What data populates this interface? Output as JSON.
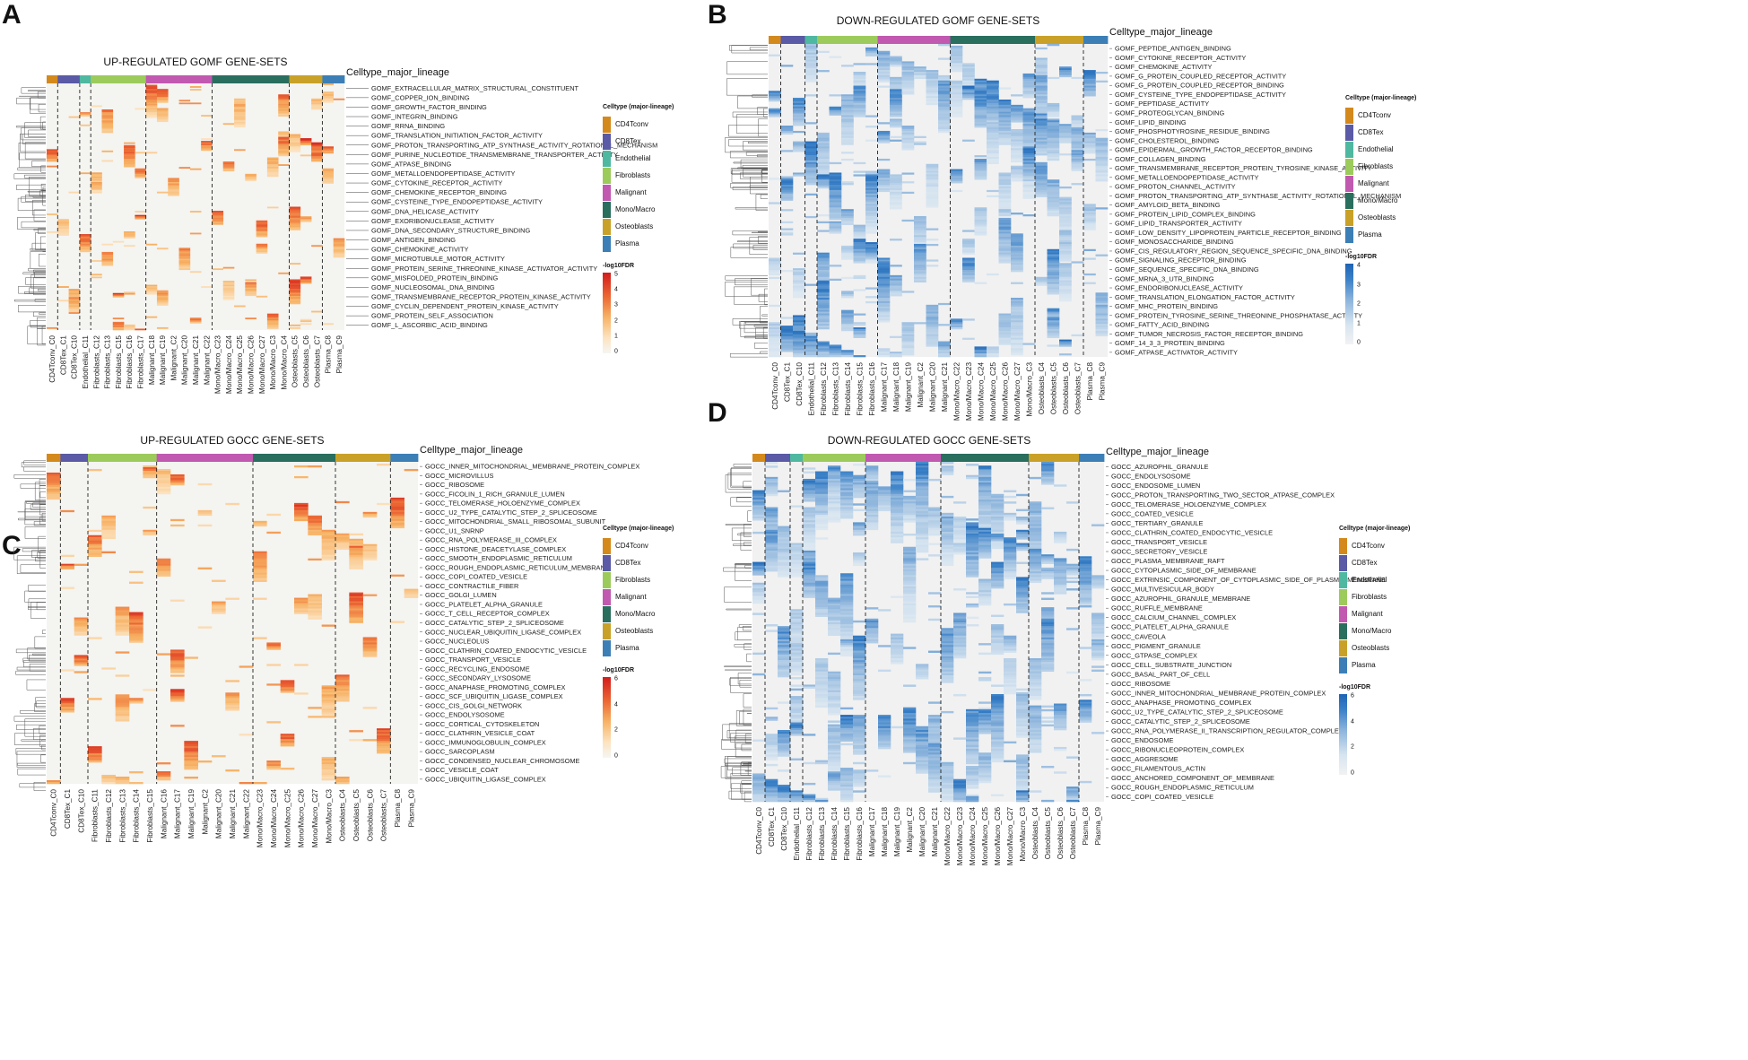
{
  "chart_data": [
    {
      "type": "heatmap",
      "panel": "A",
      "title": "UP-REGULATED GOMF GENE-SETS",
      "strip_label": "Celltype_major_lineage",
      "legend_title": "Celltype (major-lineage)",
      "colorbar_title": "-log10FDR",
      "colorbar_ticks": [
        "0",
        "1",
        "2",
        "3",
        "4",
        "5"
      ],
      "colorbar_range": [
        0,
        5
      ],
      "colorscale": "red",
      "columns": [
        "CD4Tconv_C0",
        "CD8Tex_C1",
        "CD8Tex_C10",
        "Endothelial_C11",
        "Fibroblasts_C12",
        "Fibroblasts_C13",
        "Fibroblasts_C15",
        "Fibroblasts_C16",
        "Fibroblasts_C17",
        "Malignant_C18",
        "Malignant_C19",
        "Malignant_C2",
        "Malignant_C20",
        "Malignant_C21",
        "Malignant_C22",
        "Mono/Macro_C23",
        "Mono/Macro_C24",
        "Mono/Macro_C25",
        "Mono/Macro_C26",
        "Mono/Macro_C27",
        "Mono/Macro_C3",
        "Mono/Macro_C4",
        "Osteoblasts_C5",
        "Osteoblasts_C6",
        "Osteoblasts_C7",
        "Plasma_C8",
        "Plasma_C9"
      ],
      "column_groups": [
        "CD4Tconv",
        "CD8Tex",
        "CD8Tex",
        "Endothelial",
        "Fibroblasts",
        "Fibroblasts",
        "Fibroblasts",
        "Fibroblasts",
        "Fibroblasts",
        "Malignant",
        "Malignant",
        "Malignant",
        "Malignant",
        "Malignant",
        "Malignant",
        "Mono/Macro",
        "Mono/Macro",
        "Mono/Macro",
        "Mono/Macro",
        "Mono/Macro",
        "Mono/Macro",
        "Mono/Macro",
        "Osteoblasts",
        "Osteoblasts",
        "Osteoblasts",
        "Plasma",
        "Plasma"
      ],
      "rows": [
        "GOMF_EXTRACELLULAR_MATRIX_STRUCTURAL_CONSTITUENT",
        "GOMF_COPPER_ION_BINDING",
        "GOMF_GROWTH_FACTOR_BINDING",
        "GOMF_INTEGRIN_BINDING",
        "GOMF_RRNA_BINDING",
        "GOMF_TRANSLATION_INITIATION_FACTOR_ACTIVITY",
        "GOMF_PROTON_TRANSPORTING_ATP_SYNTHASE_ACTIVITY_ROTATIONAL_MECHANISM",
        "GOMF_PURINE_NUCLEOTIDE_TRANSMEMBRANE_TRANSPORTER_ACTIVITY",
        "GOMF_ATPASE_BINDING",
        "GOMF_METALLOENDOPEPTIDASE_ACTIVITY",
        "GOMF_CYTOKINE_RECEPTOR_ACTIVITY",
        "GOMF_CHEMOKINE_RECEPTOR_BINDING",
        "GOMF_CYSTEINE_TYPE_ENDOPEPTIDASE_ACTIVITY",
        "GOMF_DNA_HELICASE_ACTIVITY",
        "GOMF_EXORIBONUCLEASE_ACTIVITY",
        "GOMF_DNA_SECONDARY_STRUCTURE_BINDING",
        "GOMF_ANTIGEN_BINDING",
        "GOMF_CHEMOKINE_ACTIVITY",
        "GOMF_MICROTUBULE_MOTOR_ACTIVITY",
        "GOMF_PROTEIN_SERINE_THREONINE_KINASE_ACTIVATOR_ACTIVITY",
        "GOMF_MISFOLDED_PROTEIN_BINDING",
        "GOMF_NUCLEOSOMAL_DNA_BINDING",
        "GOMF_TRANSMEMBRANE_RECEPTOR_PROTEIN_KINASE_ACTIVITY",
        "GOMF_CYCLIN_DEPENDENT_PROTEIN_KINASE_ACTIVITY",
        "GOMF_PROTEIN_SELF_ASSOCIATION",
        "GOMF_L_ASCORBIC_ACID_BINDING"
      ]
    },
    {
      "type": "heatmap",
      "panel": "B",
      "title": "DOWN-REGULATED GOMF GENE-SETS",
      "strip_label": "Celltype_major_lineage",
      "legend_title": "Celltype (major-lineage)",
      "colorbar_title": "-log10FDR",
      "colorbar_ticks": [
        "0",
        "1",
        "2",
        "3",
        "4"
      ],
      "colorbar_range": [
        0,
        4
      ],
      "colorscale": "blue",
      "columns": [
        "CD4Tconv_C0",
        "CD8Tex_C1",
        "CD8Tex_C10",
        "Endothelial_C11",
        "Fibroblasts_C12",
        "Fibroblasts_C13",
        "Fibroblasts_C14",
        "Fibroblasts_C15",
        "Fibroblasts_C16",
        "Malignant_C17",
        "Malignant_C18",
        "Malignant_C19",
        "Malignant_C2",
        "Malignant_C20",
        "Malignant_C21",
        "Mono/Macro_C22",
        "Mono/Macro_C23",
        "Mono/Macro_C24",
        "Mono/Macro_C25",
        "Mono/Macro_C26",
        "Mono/Macro_C27",
        "Mono/Macro_C3",
        "Osteoblasts_C4",
        "Osteoblasts_C5",
        "Osteoblasts_C6",
        "Osteoblasts_C7",
        "Plasma_C8",
        "Plasma_C9"
      ],
      "column_groups": [
        "CD4Tconv",
        "CD8Tex",
        "CD8Tex",
        "Endothelial",
        "Fibroblasts",
        "Fibroblasts",
        "Fibroblasts",
        "Fibroblasts",
        "Fibroblasts",
        "Malignant",
        "Malignant",
        "Malignant",
        "Malignant",
        "Malignant",
        "Malignant",
        "Mono/Macro",
        "Mono/Macro",
        "Mono/Macro",
        "Mono/Macro",
        "Mono/Macro",
        "Mono/Macro",
        "Mono/Macro",
        "Osteoblasts",
        "Osteoblasts",
        "Osteoblasts",
        "Osteoblasts",
        "Plasma",
        "Plasma"
      ],
      "rows": [
        "GOMF_PEPTIDE_ANTIGEN_BINDING",
        "GOMF_CYTOKINE_RECEPTOR_ACTIVITY",
        "GOMF_CHEMOKINE_ACTIVITY",
        "GOMF_G_PROTEIN_COUPLED_RECEPTOR_ACTIVITY",
        "GOMF_G_PROTEIN_COUPLED_RECEPTOR_BINDING",
        "GOMF_CYSTEINE_TYPE_ENDOPEPTIDASE_ACTIVITY",
        "GOMF_PEPTIDASE_ACTIVITY",
        "GOMF_PROTEOGLYCAN_BINDING",
        "GOMF_LIPID_BINDING",
        "GOMF_PHOSPHOTYROSINE_RESIDUE_BINDING",
        "GOMF_CHOLESTEROL_BINDING",
        "GOMF_EPIDERMAL_GROWTH_FACTOR_RECEPTOR_BINDING",
        "GOMF_COLLAGEN_BINDING",
        "GOMF_TRANSMEMBRANE_RECEPTOR_PROTEIN_TYROSINE_KINASE_ACTIVITY",
        "GOMF_METALLOENDOPEPTIDASE_ACTIVITY",
        "GOMF_PROTON_CHANNEL_ACTIVITY",
        "GOMF_PROTON_TRANSPORTING_ATP_SYNTHASE_ACTIVITY_ROTATIONAL_MECHANISM",
        "GOMF_AMYLOID_BETA_BINDING",
        "GOMF_PROTEIN_LIPID_COMPLEX_BINDING",
        "GOMF_LIPID_TRANSPORTER_ACTIVITY",
        "GOMF_LOW_DENSITY_LIPOPROTEIN_PARTICLE_RECEPTOR_BINDING",
        "GOMF_MONOSACCHARIDE_BINDING",
        "GOMF_CIS_REGULATORY_REGION_SEQUENCE_SPECIFIC_DNA_BINDING",
        "GOMF_SIGNALING_RECEPTOR_BINDING",
        "GOMF_SEQUENCE_SPECIFIC_DNA_BINDING",
        "GOMF_MRNA_3_UTR_BINDING",
        "GOMF_ENDORIBONUCLEASE_ACTIVITY",
        "GOMF_TRANSLATION_ELONGATION_FACTOR_ACTIVITY",
        "GOMF_MHC_PROTEIN_BINDING",
        "GOMF_PROTEIN_TYROSINE_SERINE_THREONINE_PHOSPHATASE_ACTIVITY",
        "GOMF_FATTY_ACID_BINDING",
        "GOMF_TUMOR_NECROSIS_FACTOR_RECEPTOR_BINDING",
        "GOMF_14_3_3_PROTEIN_BINDING",
        "GOMF_ATPASE_ACTIVATOR_ACTIVITY"
      ]
    },
    {
      "type": "heatmap",
      "panel": "C",
      "title": "UP-REGULATED GOCC GENE-SETS",
      "strip_label": "Celltype_major_lineage",
      "legend_title": "Celltype (major-lineage)",
      "colorbar_title": "-log10FDR",
      "colorbar_ticks": [
        "0",
        "2",
        "4",
        "6"
      ],
      "colorbar_range": [
        0,
        6
      ],
      "colorscale": "red",
      "columns": [
        "CD4Tconv_C0",
        "CD8Tex_C1",
        "CD8Tex_C10",
        "Fibroblasts_C11",
        "Fibroblasts_C12",
        "Fibroblasts_C13",
        "Fibroblasts_C14",
        "Fibroblasts_C15",
        "Malignant_C16",
        "Malignant_C17",
        "Malignant_C19",
        "Malignant_C2",
        "Malignant_C20",
        "Malignant_C21",
        "Malignant_C22",
        "Mono/Macro_C23",
        "Mono/Macro_C24",
        "Mono/Macro_C25",
        "Mono/Macro_C26",
        "Mono/Macro_C27",
        "Mono/Macro_C3",
        "Osteoblasts_C4",
        "Osteoblasts_C5",
        "Osteoblasts_C6",
        "Osteoblasts_C7",
        "Plasma_C8",
        "Plasma_C9"
      ],
      "column_groups": [
        "CD4Tconv",
        "CD8Tex",
        "CD8Tex",
        "Fibroblasts",
        "Fibroblasts",
        "Fibroblasts",
        "Fibroblasts",
        "Fibroblasts",
        "Malignant",
        "Malignant",
        "Malignant",
        "Malignant",
        "Malignant",
        "Malignant",
        "Malignant",
        "Mono/Macro",
        "Mono/Macro",
        "Mono/Macro",
        "Mono/Macro",
        "Mono/Macro",
        "Mono/Macro",
        "Osteoblasts",
        "Osteoblasts",
        "Osteoblasts",
        "Osteoblasts",
        "Plasma",
        "Plasma"
      ],
      "rows": [
        "GOCC_INNER_MITOCHONDRIAL_MEMBRANE_PROTEIN_COMPLEX",
        "GOCC_MICROVILLUS",
        "GOCC_RIBOSOME",
        "GOCC_FICOLIN_1_RICH_GRANULE_LUMEN",
        "GOCC_TELOMERASE_HOLOENZYME_COMPLEX",
        "GOCC_U2_TYPE_CATALYTIC_STEP_2_SPLICEOSOME",
        "GOCC_MITOCHONDRIAL_SMALL_RIBOSOMAL_SUBUNIT",
        "GOCC_U1_SNRNP",
        "GOCC_RNA_POLYMERASE_III_COMPLEX",
        "GOCC_HISTONE_DEACETYLASE_COMPLEX",
        "GOCC_SMOOTH_ENDOPLASMIC_RETICULUM",
        "GOCC_ROUGH_ENDOPLASMIC_RETICULUM_MEMBRANE",
        "GOCC_COPI_COATED_VESICLE",
        "GOCC_CONTRACTILE_FIBER",
        "GOCC_GOLGI_LUMEN",
        "GOCC_PLATELET_ALPHA_GRANULE",
        "GOCC_T_CELL_RECEPTOR_COMPLEX",
        "GOCC_CATALYTIC_STEP_2_SPLICEOSOME",
        "GOCC_NUCLEAR_UBIQUITIN_LIGASE_COMPLEX",
        "GOCC_NUCLEOLUS",
        "GOCC_CLATHRIN_COATED_ENDOCYTIC_VESICLE",
        "GOCC_TRANSPORT_VESICLE",
        "GOCC_RECYCLING_ENDOSOME",
        "GOCC_SECONDARY_LYSOSOME",
        "GOCC_ANAPHASE_PROMOTING_COMPLEX",
        "GOCC_SCF_UBIQUITIN_LIGASE_COMPLEX",
        "GOCC_CIS_GOLGI_NETWORK",
        "GOCC_ENDOLYSOSOME",
        "GOCC_CORTICAL_CYTOSKELETON",
        "GOCC_CLATHRIN_VESICLE_COAT",
        "GOCC_IMMUNOGLOBULIN_COMPLEX",
        "GOCC_SARCOPLASM",
        "GOCC_CONDENSED_NUCLEAR_CHROMOSOME",
        "GOCC_VESICLE_COAT",
        "GOCC_UBIQUITIN_LIGASE_COMPLEX"
      ]
    },
    {
      "type": "heatmap",
      "panel": "D",
      "title": "DOWN-REGULATED GOCC GENE-SETS",
      "strip_label": "Celltype_major_lineage",
      "legend_title": "Celltype (major-lineage)",
      "colorbar_title": "-log10FDR",
      "colorbar_ticks": [
        "0",
        "2",
        "4",
        "6"
      ],
      "colorbar_range": [
        0,
        6
      ],
      "colorscale": "blue",
      "columns": [
        "CD4Tconv_C0",
        "CD8Tex_C1",
        "CD8Tex_C10",
        "Endothelial_C11",
        "Fibroblasts_C12",
        "Fibroblasts_C13",
        "Fibroblasts_C14",
        "Fibroblasts_C15",
        "Fibroblasts_C16",
        "Malignant_C17",
        "Malignant_C18",
        "Malignant_C19",
        "Malignant_C2",
        "Malignant_C20",
        "Malignant_C21",
        "Mono/Macro_C22",
        "Mono/Macro_C23",
        "Mono/Macro_C24",
        "Mono/Macro_C25",
        "Mono/Macro_C26",
        "Mono/Macro_C27",
        "Mono/Macro_C3",
        "Osteoblasts_C4",
        "Osteoblasts_C5",
        "Osteoblasts_C6",
        "Osteoblasts_C7",
        "Plasma_C8",
        "Plasma_C9"
      ],
      "column_groups": [
        "CD4Tconv",
        "CD8Tex",
        "CD8Tex",
        "Endothelial",
        "Fibroblasts",
        "Fibroblasts",
        "Fibroblasts",
        "Fibroblasts",
        "Fibroblasts",
        "Malignant",
        "Malignant",
        "Malignant",
        "Malignant",
        "Malignant",
        "Malignant",
        "Mono/Macro",
        "Mono/Macro",
        "Mono/Macro",
        "Mono/Macro",
        "Mono/Macro",
        "Mono/Macro",
        "Mono/Macro",
        "Osteoblasts",
        "Osteoblasts",
        "Osteoblasts",
        "Osteoblasts",
        "Plasma",
        "Plasma"
      ],
      "rows": [
        "GOCC_AZUROPHIL_GRANULE",
        "GOCC_ENDOLYSOSOME",
        "GOCC_ENDOSOME_LUMEN",
        "GOCC_PROTON_TRANSPORTING_TWO_SECTOR_ATPASE_COMPLEX",
        "GOCC_TELOMERASE_HOLOENZYME_COMPLEX",
        "GOCC_COATED_VESICLE",
        "GOCC_TERTIARY_GRANULE",
        "GOCC_CLATHRIN_COATED_ENDOCYTIC_VESICLE",
        "GOCC_TRANSPORT_VESICLE",
        "GOCC_SECRETORY_VESICLE",
        "GOCC_PLASMA_MEMBRANE_RAFT",
        "GOCC_CYTOPLASMIC_SIDE_OF_MEMBRANE",
        "GOCC_EXTRINSIC_COMPONENT_OF_CYTOPLASMIC_SIDE_OF_PLASMA_MEMBRANE",
        "GOCC_MULTIVESICULAR_BODY",
        "GOCC_AZUROPHIL_GRANULE_MEMBRANE",
        "GOCC_RUFFLE_MEMBRANE",
        "GOCC_CALCIUM_CHANNEL_COMPLEX",
        "GOCC_PLATELET_ALPHA_GRANULE",
        "GOCC_CAVEOLA",
        "GOCC_PIGMENT_GRANULE",
        "GOCC_GTPASE_COMPLEX",
        "GOCC_CELL_SUBSTRATE_JUNCTION",
        "GOCC_BASAL_PART_OF_CELL",
        "GOCC_RIBOSOME",
        "GOCC_INNER_MITOCHONDRIAL_MEMBRANE_PROTEIN_COMPLEX",
        "GOCC_ANAPHASE_PROMOTING_COMPLEX",
        "GOCC_U2_TYPE_CATALYTIC_STEP_2_SPLICEOSOME",
        "GOCC_CATALYTIC_STEP_2_SPLICEOSOME",
        "GOCC_RNA_POLYMERASE_II_TRANSCRIPTION_REGULATOR_COMPLEX",
        "GOCC_ENDOSOME",
        "GOCC_RIBONUCLEOPROTEIN_COMPLEX",
        "GOCC_AGGRESOME",
        "GOCC_FILAMENTOUS_ACTIN",
        "GOCC_ANCHORED_COMPONENT_OF_MEMBRANE",
        "GOCC_ROUGH_ENDOPLASMIC_RETICULUM",
        "GOCC_COPI_COATED_VESICLE"
      ]
    }
  ],
  "lineage_colors": {
    "CD4Tconv": "#D4891C",
    "CD8Tex": "#5A5AA6",
    "Endothelial": "#4FB8A0",
    "Fibroblasts": "#9CCB5C",
    "Malignant": "#C259B0",
    "Mono/Macro": "#2A6E5E",
    "Osteoblasts": "#C9A128",
    "Plasma": "#3C7FB6"
  }
}
